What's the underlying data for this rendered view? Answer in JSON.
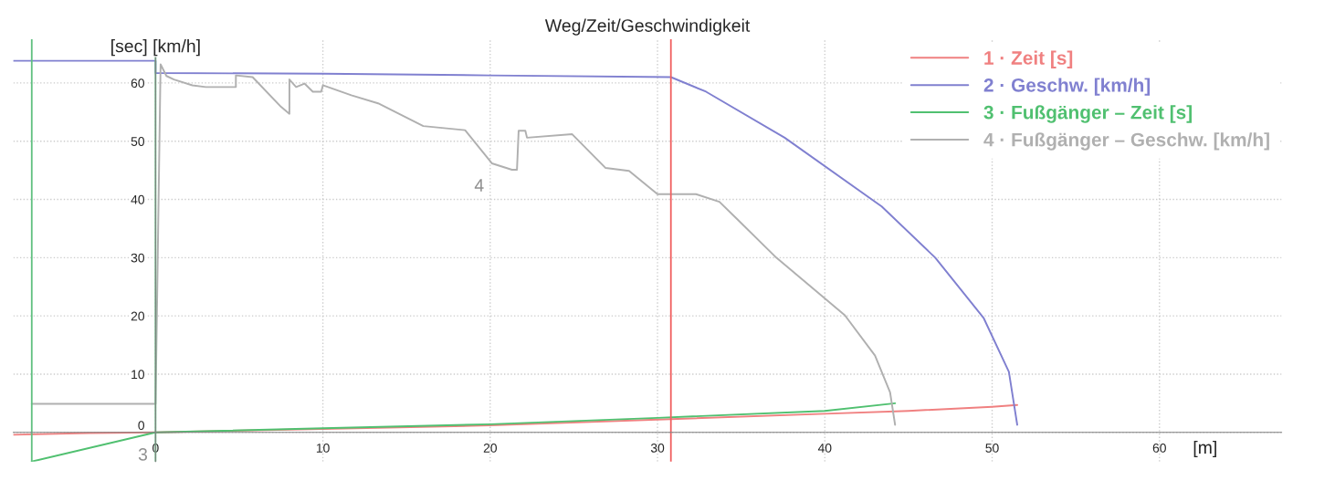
{
  "chart_data": {
    "type": "line",
    "title": "Weg/Zeit/Geschwindigkeit",
    "xlabel": "[m]",
    "ylabel": "[sec] [km/h]",
    "xlim": [
      -8.5,
      67.3
    ],
    "ylim": [
      -5,
      67.5
    ],
    "xticks": [
      0,
      10,
      20,
      30,
      40,
      50,
      60
    ],
    "yticks": [
      0,
      10,
      20,
      30,
      40,
      50,
      60
    ],
    "grid": true,
    "legend": "top right",
    "line_style": "solid",
    "marker": "none",
    "series": [
      {
        "name": "1 · Zeit [s]",
        "color": "#f08080",
        "x": [
          -8.5,
          -4,
          0,
          10,
          20,
          30,
          40,
          45,
          50,
          51.5
        ],
        "values": [
          -0.4,
          -0.1,
          0,
          0.6,
          1.2,
          2.2,
          3.2,
          3.7,
          4.4,
          4.7
        ]
      },
      {
        "name": "2 · Geschw. [km/h]",
        "color": "#8080d0",
        "x": [
          -8.5,
          0,
          0,
          10,
          20,
          30.8,
          32.9,
          37.6,
          43.4,
          46.6,
          49.5,
          51,
          51.5
        ],
        "values": [
          63.8,
          63.8,
          61.7,
          61.6,
          61.3,
          61.0,
          58.5,
          50.6,
          38.8,
          30,
          19.6,
          10.4,
          1.3
        ]
      },
      {
        "name": "3 · Fußgänger – Zeit [s]",
        "color": "#50c070",
        "x": [
          -7.4,
          0,
          10,
          20,
          30,
          40,
          44.2
        ],
        "values": [
          -5,
          0,
          0.7,
          1.4,
          2.5,
          3.7,
          5.0
        ]
      },
      {
        "name": "4 · Fußgänger – Geschw. [km/h]",
        "color": "#b0b0b0",
        "x": [
          -7.4,
          0,
          0.3,
          0.65,
          1.1,
          2.2,
          3,
          4.8,
          4.8,
          5.8,
          7.5,
          8.0,
          8.0,
          8.4,
          8.9,
          9.4,
          9.9,
          10,
          11.7,
          13.3,
          16,
          18.5,
          20.1,
          21.3,
          21.6,
          21.7,
          22.1,
          22.2,
          24.9,
          26.9,
          28.3,
          30,
          32.3,
          33.7,
          34.7,
          37.1,
          41.2,
          43,
          43.9,
          44.2
        ],
        "values": [
          4.9,
          4.9,
          63.2,
          61.2,
          60.6,
          59.6,
          59.3,
          59.3,
          61.3,
          61.0,
          55.9,
          54.7,
          60.6,
          59.3,
          59.9,
          58.5,
          58.5,
          59.6,
          57.9,
          56.5,
          52.6,
          51.9,
          46.2,
          45.1,
          45.1,
          51.8,
          51.8,
          50.6,
          51.2,
          45.4,
          44.9,
          40.9,
          40.9,
          39.6,
          36.8,
          30,
          20.1,
          13.2,
          6.9,
          1.3
        ]
      }
    ],
    "ref_lines": [
      {
        "axis": "x",
        "value": 30.8,
        "color": "#f06060"
      },
      {
        "axis": "x",
        "value": 0,
        "color": "#60c080"
      },
      {
        "axis": "x",
        "value": -7.4,
        "color": "#60c080"
      }
    ],
    "annotations": [
      {
        "text": "4",
        "x": 20.1,
        "y": 46.2
      },
      {
        "text": "3",
        "x": 0,
        "y": 0
      }
    ]
  }
}
